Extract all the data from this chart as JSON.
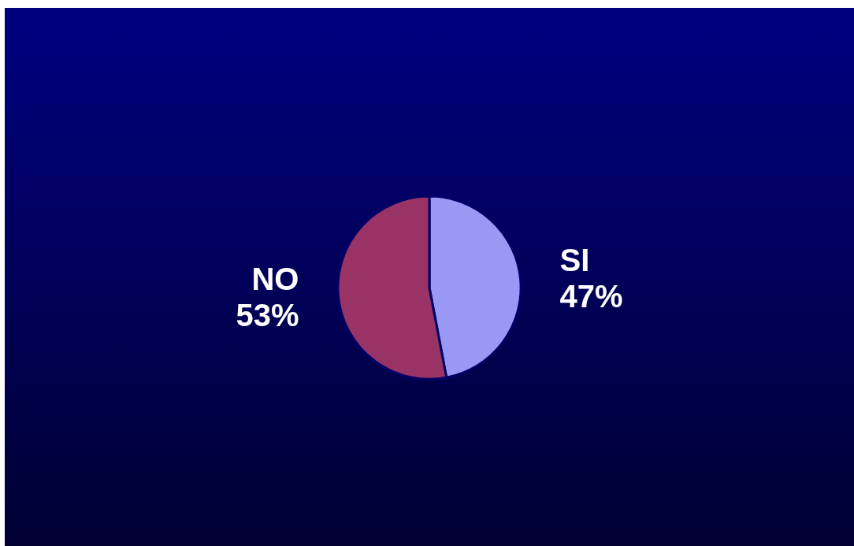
{
  "chart_data": {
    "type": "pie",
    "categories": [
      "SI",
      "NO"
    ],
    "values": [
      47,
      53
    ],
    "colors": [
      "#9999f5",
      "#993366"
    ],
    "value_labels": [
      "47%",
      "53%"
    ],
    "legend": false
  }
}
